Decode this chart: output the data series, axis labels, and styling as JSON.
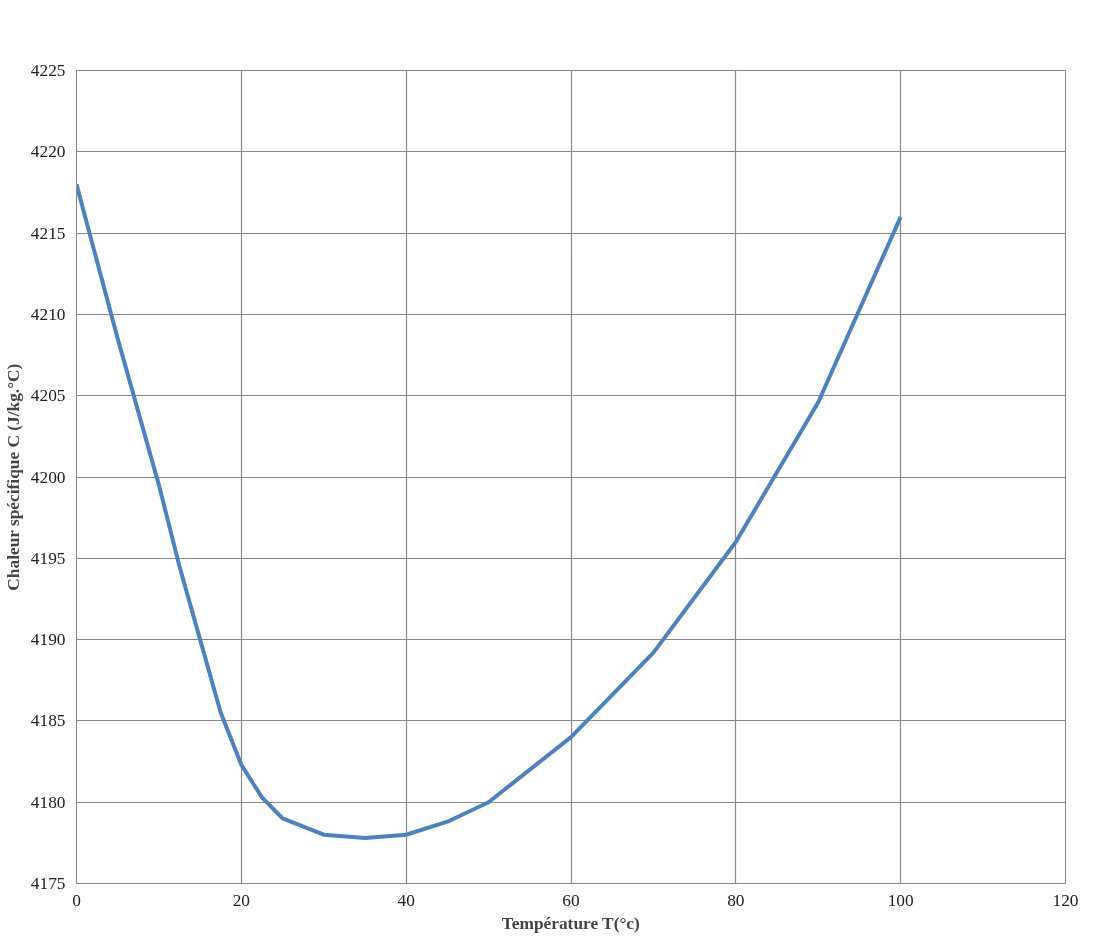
{
  "chart_data": {
    "type": "line",
    "xlabel": "Température T(°c)",
    "ylabel": "Chaleur spécifique C (J/kg.°C)",
    "x": [
      0,
      5,
      10,
      12.5,
      15,
      17.5,
      20,
      22.5,
      25,
      30,
      35,
      40,
      45,
      50,
      60,
      70,
      80,
      90,
      100
    ],
    "series": [
      {
        "color": "#4f81bd",
        "values": [
          4218,
          4208.5,
          4199.5,
          4194.5,
          4190,
          4185.5,
          4182.3,
          4180.3,
          4179,
          4178,
          4177.8,
          4178,
          4178.8,
          4180,
          4184,
          4189.2,
          4196,
          4204.6,
          4216
        ]
      }
    ],
    "xlim": [
      0,
      120
    ],
    "xticks": [
      0,
      20,
      40,
      60,
      80,
      100,
      120
    ],
    "ylim": [
      4175,
      4225
    ],
    "yticks": [
      4175,
      4180,
      4185,
      4190,
      4195,
      4200,
      4205,
      4210,
      4215,
      4220,
      4225
    ],
    "grid": true,
    "marker": "none",
    "line_style": "solid"
  }
}
